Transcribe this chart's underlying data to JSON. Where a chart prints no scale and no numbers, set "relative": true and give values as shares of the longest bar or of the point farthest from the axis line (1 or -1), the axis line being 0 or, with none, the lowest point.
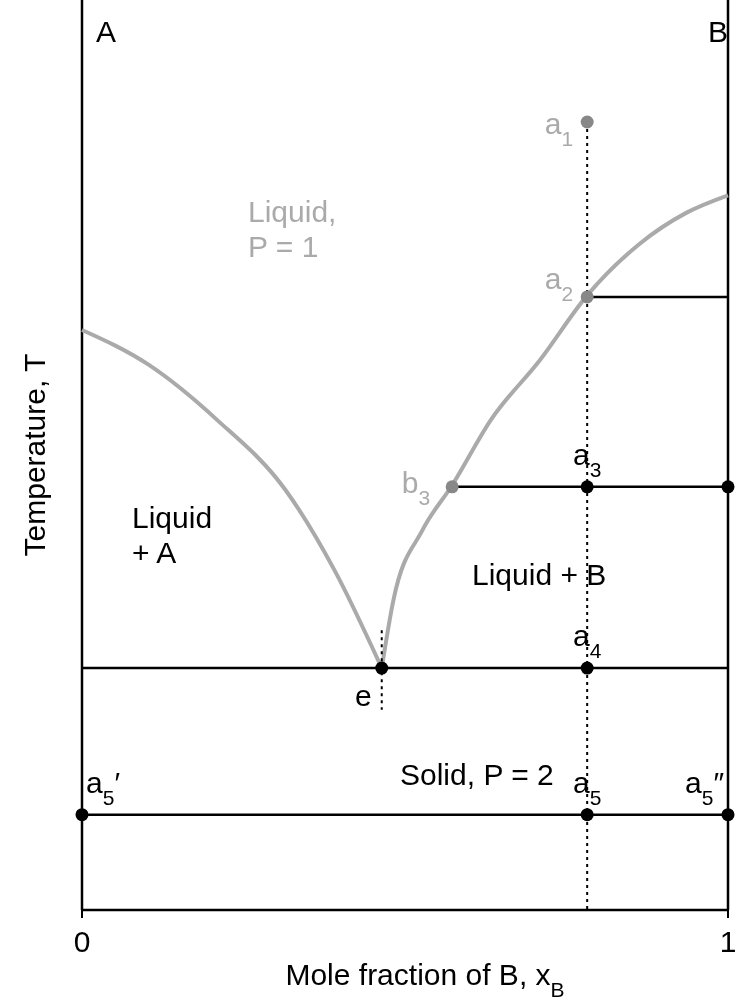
{
  "chart_data": {
    "type": "line",
    "relative": true,
    "xlabel": "Mole fraction of B, x$_{B}$",
    "ylabel": "Temperature, T",
    "xlim": [
      0,
      1
    ],
    "xticks": [
      0,
      1
    ],
    "series": [
      {
        "color": "#aaaaaa",
        "line_style": "solid",
        "x": [
          0,
          0.103,
          0.209,
          0.315,
          0.391,
          0.464
        ],
        "values": [
          0.736,
          0.692,
          0.622,
          0.533,
          0.431,
          0.307
        ]
      },
      {
        "color": "#aaaaaa",
        "line_style": "solid",
        "x": [
          0.464,
          0.482,
          0.527,
          0.573,
          0.633,
          0.709,
          0.782,
          0.861,
          0.936,
          1
        ],
        "values": [
          0.307,
          0.393,
          0.482,
          0.539,
          0.622,
          0.698,
          0.78,
          0.844,
          0.885,
          0.907
        ]
      },
      {
        "color": "#000000",
        "line_style": "solid",
        "x": [
          0,
          1
        ],
        "values": [
          0.307,
          0.307
        ]
      },
      {
        "color": "#000000",
        "line_style": "solid",
        "x": [
          0,
          1
        ],
        "values": [
          0.121,
          0.121
        ]
      },
      {
        "color": "#000000",
        "line_style": "solid",
        "x": [
          0.782,
          1
        ],
        "values": [
          0.778,
          0.778
        ]
      },
      {
        "color": "#000000",
        "line_style": "solid",
        "x": [
          0.573,
          1
        ],
        "values": [
          0.537,
          0.537
        ]
      },
      {
        "color": "#000000",
        "line_style": "dotted",
        "x": [
          0.782,
          0.782
        ],
        "values": [
          1,
          0
        ]
      },
      {
        "color": "#000000",
        "line_style": "dotted",
        "x": [
          0.464,
          0.464
        ],
        "values": [
          0.355,
          0.254
        ]
      },
      {
        "type": "scatter",
        "marker": "circle",
        "color": "#888888",
        "x": [
          0.782,
          0.782,
          0.573
        ],
        "values": [
          1,
          0.778,
          0.537
        ]
      },
      {
        "type": "scatter",
        "marker": "circle",
        "color": "#000000",
        "x": [
          0.782,
          1,
          0.464,
          0.782,
          0,
          0.782,
          1
        ],
        "values": [
          0.537,
          0.537,
          0.307,
          0.307,
          0.121,
          0.121,
          0.121
        ]
      }
    ],
    "annotations": [
      "A",
      "B",
      "Liquid,\nP = 1",
      "Liquid\n+ A",
      "Liquid + B",
      "Solid, P = 2",
      {
        "text": "a$_{1}$",
        "x": 0.782,
        "y": 1
      },
      {
        "text": "a$_{2}$",
        "x": 0.782,
        "y": 0.778
      },
      {
        "text": "b$_{3}$",
        "x": 0.573,
        "y": 0.537
      },
      {
        "text": "a$_{3}$",
        "x": 0.782,
        "y": 0.537
      },
      {
        "text": "a$_{4}$",
        "x": 0.782,
        "y": 0.307
      },
      {
        "text": "e",
        "x": 0.464,
        "y": 0.307
      },
      {
        "text": "a$_{5}$′",
        "x": 0,
        "y": 0.121
      },
      {
        "text": "a$_{5}$",
        "x": 0.782,
        "y": 0.121
      },
      {
        "text": "a$_{5}$″",
        "x": 1,
        "y": 0.121
      }
    ]
  }
}
